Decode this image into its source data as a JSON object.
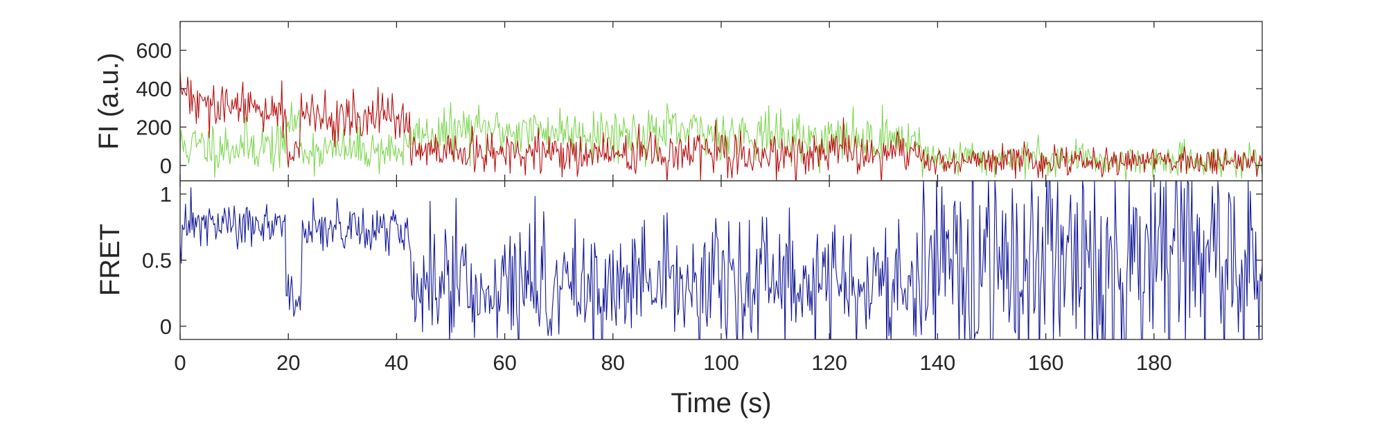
{
  "chart_data": [
    {
      "type": "line",
      "panel": "top",
      "ylabel": "FI (a.u.)",
      "xlim": [
        0,
        200
      ],
      "ylim": [
        -80,
        750
      ],
      "yticks": [
        0,
        200,
        400,
        600
      ],
      "grid": false,
      "x_step_s": 0.2,
      "series": [
        {
          "color": "#7ED651",
          "segments": [
            {
              "x_start": 0,
              "x_end": 19.5,
              "mean": 100,
              "noise": 65,
              "spike_max": 250
            },
            {
              "x_start": 19.5,
              "x_end": 22,
              "mean": 230,
              "noise": 55,
              "spike_max": 330
            },
            {
              "x_start": 22,
              "x_end": 42.5,
              "mean": 80,
              "noise": 55,
              "spike_max": 240
            },
            {
              "x_start": 42.5,
              "x_end": 50,
              "mean": 160,
              "noise": 60,
              "spike_max": 300
            },
            {
              "x_start": 50,
              "x_end": 75,
              "mean": 180,
              "noise": 65,
              "spike_max": 370
            },
            {
              "x_start": 75,
              "x_end": 110,
              "mean": 170,
              "noise": 65,
              "spike_max": 450
            },
            {
              "x_start": 110,
              "x_end": 137,
              "mean": 140,
              "noise": 60,
              "spike_max": 360
            },
            {
              "x_start": 137,
              "x_end": 170,
              "mean": 40,
              "noise": 45,
              "spike_max": 190
            },
            {
              "x_start": 170,
              "x_end": 200,
              "mean": 25,
              "noise": 40,
              "spike_max": 140
            }
          ]
        },
        {
          "color": "#B90B0B",
          "segments": [
            {
              "x_start": 0,
              "x_end": 2,
              "mean": 390,
              "noise": 75,
              "spike_max": 620
            },
            {
              "x_start": 2,
              "x_end": 19.5,
              "mean": 300,
              "noise": 60,
              "spike_max": 560
            },
            {
              "x_start": 19.5,
              "x_end": 22,
              "mean": 80,
              "noise": 50,
              "spike_max": 230
            },
            {
              "x_start": 22,
              "x_end": 42.5,
              "mean": 250,
              "noise": 60,
              "spike_max": 530
            },
            {
              "x_start": 42.5,
              "x_end": 137,
              "mean": 60,
              "noise": 55,
              "spike_max": 270
            },
            {
              "x_start": 137,
              "x_end": 200,
              "mean": 25,
              "noise": 40,
              "spike_max": 150
            }
          ]
        }
      ]
    },
    {
      "type": "line",
      "panel": "bottom",
      "ylabel": "FRET",
      "xlabel": "Time (s)",
      "xlim": [
        0,
        200
      ],
      "ylim": [
        -0.1,
        1.1
      ],
      "yticks": [
        0,
        0.5,
        1
      ],
      "ytick_labels": [
        "0",
        "0.5",
        "1"
      ],
      "xticks": [
        0,
        20,
        40,
        60,
        80,
        100,
        120,
        140,
        160,
        180
      ],
      "grid": false,
      "x_step_s": 0.2,
      "series": [
        {
          "color": "#0F1596",
          "segments": [
            {
              "x_start": 0,
              "x_end": 19.5,
              "mean": 0.76,
              "noise": 0.09,
              "spike_max": 1.1
            },
            {
              "x_start": 19.5,
              "x_end": 22.5,
              "mean": 0.2,
              "noise": 0.12,
              "spike_max": 0.5
            },
            {
              "x_start": 22.5,
              "x_end": 42.5,
              "mean": 0.74,
              "noise": 0.09,
              "spike_max": 1.1
            },
            {
              "x_start": 42.5,
              "x_end": 137,
              "mean": 0.3,
              "noise": 0.22,
              "spike_max": 1.1
            },
            {
              "x_start": 137,
              "x_end": 200,
              "mean": 0.45,
              "noise": 0.42,
              "spike_max": 1.1
            }
          ]
        }
      ]
    }
  ]
}
